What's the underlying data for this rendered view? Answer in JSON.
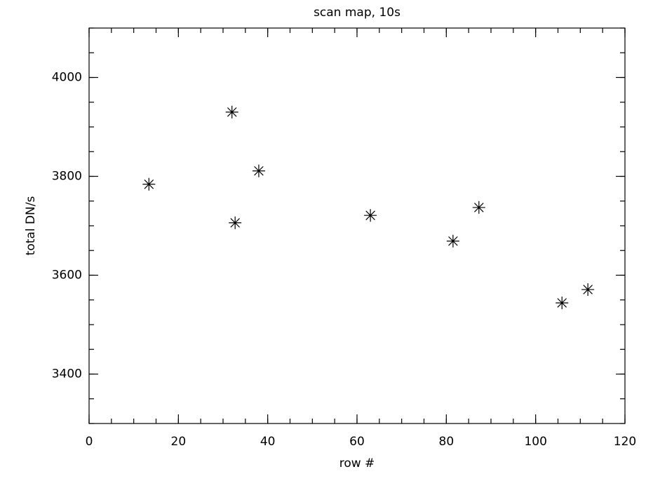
{
  "chart_data": {
    "type": "scatter",
    "title": "scan map, 10s",
    "x_label": "row #",
    "y_label": "total DN/s",
    "series": [
      {
        "color": "#000000",
        "x": [
          13.4,
          32.0,
          32.7,
          38.0,
          63.0,
          81.5,
          87.3,
          105.9,
          111.7
        ],
        "values": [
          3784,
          3930,
          3706,
          3811,
          3721,
          3669,
          3737,
          3544,
          3571
        ]
      }
    ],
    "xlim": [
      0,
      120
    ],
    "xticks": [
      0,
      20,
      40,
      60,
      80,
      100,
      120
    ],
    "ylim": [
      3300,
      4100
    ],
    "yticks": [
      3400,
      3600,
      3800,
      4000
    ],
    "grid": false
  }
}
